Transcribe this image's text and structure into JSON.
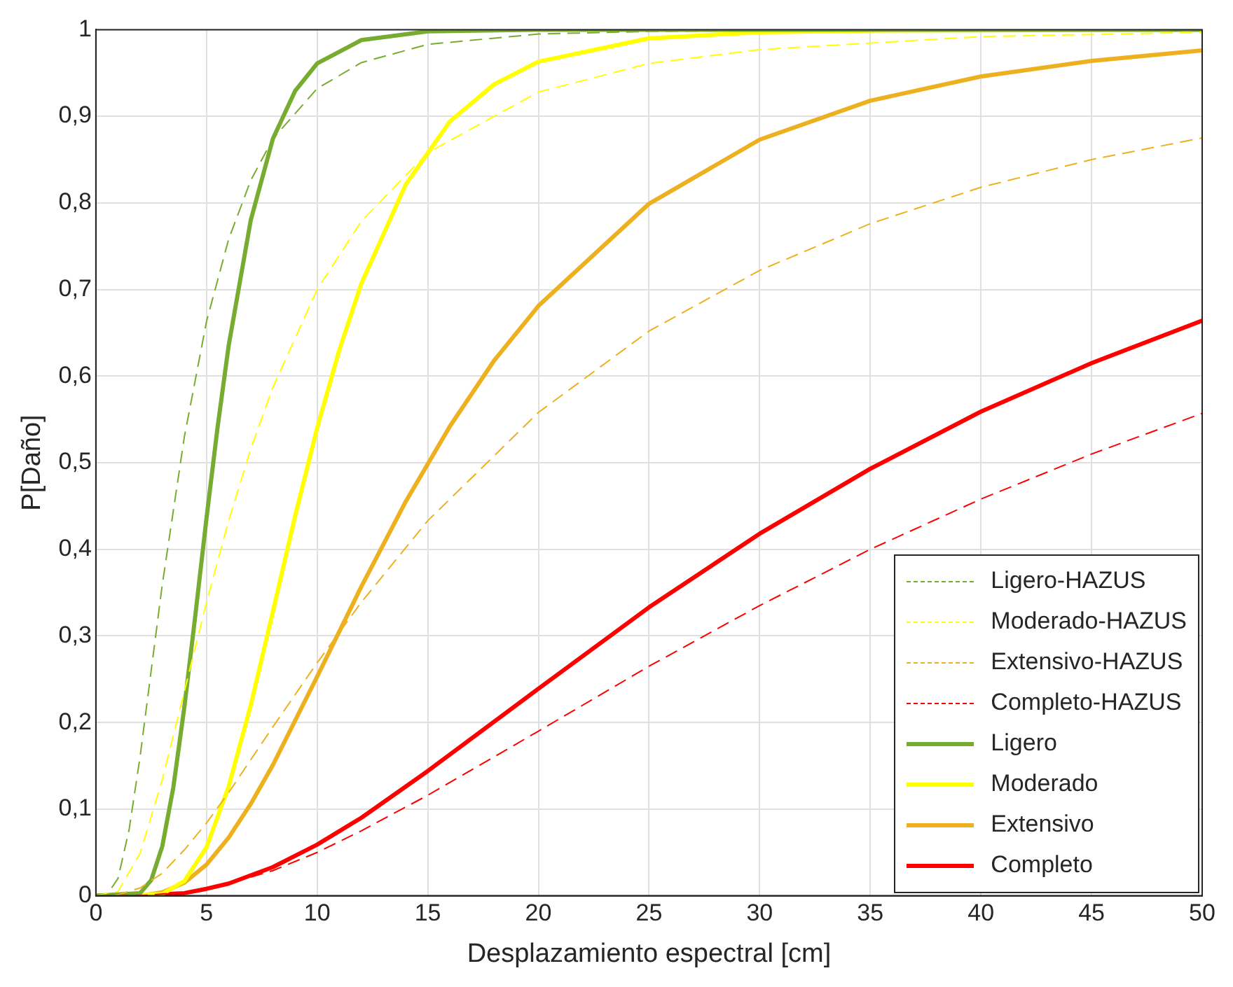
{
  "chart_data": {
    "type": "line",
    "xlabel": "Desplazamiento espectral [cm]",
    "ylabel": "P[Daño]",
    "xlim": [
      0,
      50
    ],
    "ylim": [
      0,
      1
    ],
    "xticks": [
      0,
      5,
      10,
      15,
      20,
      25,
      30,
      35,
      40,
      45,
      50
    ],
    "yticks": [
      0,
      {
        "value": 0.1,
        "label": "0,1"
      },
      {
        "value": 0.2,
        "label": "0,2"
      },
      {
        "value": 0.3,
        "label": "0,3"
      },
      {
        "value": 0.4,
        "label": "0,4"
      },
      {
        "value": 0.5,
        "label": "0,5"
      },
      {
        "value": 0.6,
        "label": "0,6"
      },
      {
        "value": 0.7,
        "label": "0,7"
      },
      {
        "value": 0.8,
        "label": "0,8"
      },
      {
        "value": 0.9,
        "label": "0,9"
      },
      1
    ],
    "grid": true,
    "legend": "bottom right",
    "marker": "none",
    "series": [
      {
        "name": "Ligero-HAZUS",
        "color": "#77ac30",
        "line_style": "dashed",
        "x": [
          0,
          0.5,
          1,
          1.5,
          2,
          3,
          4,
          5,
          6,
          7,
          8,
          10,
          12,
          15,
          20,
          25,
          30,
          40,
          50
        ],
        "values": [
          0,
          0.001,
          0.02,
          0.076,
          0.161,
          0.359,
          0.53,
          0.663,
          0.758,
          0.826,
          0.874,
          0.932,
          0.962,
          0.983,
          0.995,
          0.998,
          0.999,
          1,
          1
        ]
      },
      {
        "name": "Moderado-HAZUS",
        "color": "#ffff00",
        "line_style": "dashed",
        "x": [
          0,
          1,
          2,
          3,
          4,
          5,
          6,
          7,
          8,
          10,
          12,
          15,
          20,
          25,
          30,
          40,
          50
        ],
        "values": [
          0,
          0.005,
          0.049,
          0.134,
          0.236,
          0.339,
          0.433,
          0.516,
          0.587,
          0.7,
          0.779,
          0.858,
          0.928,
          0.961,
          0.977,
          0.992,
          0.997
        ]
      },
      {
        "name": "Extensivo-HAZUS",
        "color": "#edb120",
        "line_style": "dashed",
        "x": [
          0,
          1,
          2,
          3,
          4,
          5,
          6,
          8,
          10,
          12,
          15,
          20,
          25,
          30,
          35,
          40,
          45,
          50
        ],
        "values": [
          0,
          0.001,
          0.009,
          0.026,
          0.053,
          0.084,
          0.119,
          0.195,
          0.269,
          0.339,
          0.433,
          0.558,
          0.652,
          0.722,
          0.776,
          0.818,
          0.85,
          0.875
        ]
      },
      {
        "name": "Completo-HAZUS",
        "color": "#ff0000",
        "line_style": "dashed",
        "x": [
          0,
          2,
          4,
          6,
          8,
          10,
          12,
          15,
          20,
          25,
          30,
          35,
          40,
          45,
          50
        ],
        "values": [
          0,
          0,
          0.004,
          0.014,
          0.029,
          0.05,
          0.075,
          0.116,
          0.19,
          0.265,
          0.335,
          0.4,
          0.458,
          0.51,
          0.557
        ]
      },
      {
        "name": "Ligero",
        "color": "#77ac30",
        "line_style": "solid",
        "x": [
          0,
          2,
          2.5,
          3,
          3.5,
          4,
          4.5,
          5,
          5.5,
          6,
          7,
          8,
          9,
          10,
          12,
          15,
          20,
          50
        ],
        "values": [
          0,
          0.003,
          0.018,
          0.057,
          0.125,
          0.218,
          0.325,
          0.436,
          0.541,
          0.635,
          0.78,
          0.874,
          0.929,
          0.961,
          0.988,
          0.998,
          1,
          1
        ]
      },
      {
        "name": "Moderado",
        "color": "#ffff00",
        "line_style": "solid",
        "x": [
          0,
          3,
          4,
          5,
          6,
          7,
          8,
          9,
          10,
          11,
          12,
          14,
          16,
          18,
          20,
          25,
          30,
          35,
          50
        ],
        "values": [
          0,
          0.002,
          0.017,
          0.056,
          0.126,
          0.22,
          0.328,
          0.438,
          0.54,
          0.63,
          0.707,
          0.821,
          0.894,
          0.937,
          0.963,
          0.99,
          0.997,
          0.999,
          1
        ]
      },
      {
        "name": "Extensivo",
        "color": "#edb120",
        "line_style": "solid",
        "x": [
          0,
          2,
          3,
          4,
          5,
          6,
          7,
          8,
          10,
          12,
          14,
          16,
          18,
          20,
          25,
          30,
          35,
          40,
          45,
          50
        ],
        "values": [
          0,
          0,
          0.004,
          0.015,
          0.036,
          0.067,
          0.106,
          0.151,
          0.253,
          0.357,
          0.455,
          0.542,
          0.618,
          0.681,
          0.799,
          0.873,
          0.918,
          0.946,
          0.964,
          0.976
        ]
      },
      {
        "name": "Completo",
        "color": "#ff0000",
        "line_style": "solid",
        "x": [
          0,
          2,
          4,
          5,
          6,
          8,
          10,
          12,
          15,
          20,
          25,
          30,
          35,
          40,
          45,
          50
        ],
        "values": [
          0,
          0,
          0.003,
          0.008,
          0.014,
          0.033,
          0.059,
          0.09,
          0.144,
          0.239,
          0.333,
          0.418,
          0.493,
          0.559,
          0.615,
          0.664
        ]
      }
    ]
  }
}
